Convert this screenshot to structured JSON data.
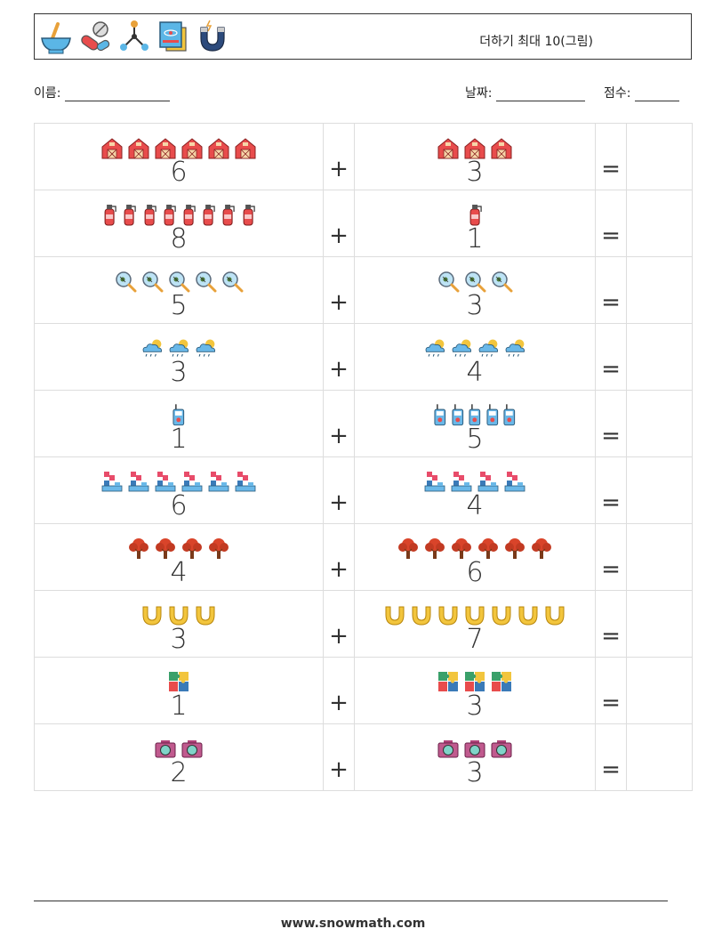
{
  "header": {
    "title": "더하기 최대 10(그림)",
    "icons": [
      "mortar-pestle-icon",
      "pills-icon",
      "molecule-icon",
      "science-book-icon",
      "magnet-icon"
    ]
  },
  "fields": {
    "name_label": "이름:",
    "date_label": "날짜:",
    "score_label": "점수:"
  },
  "rows": [
    {
      "a": 6,
      "b": 3,
      "icon": "barn"
    },
    {
      "a": 8,
      "b": 1,
      "icon": "fire-extinguisher"
    },
    {
      "a": 5,
      "b": 3,
      "icon": "magnifier-bug"
    },
    {
      "a": 3,
      "b": 4,
      "icon": "rain-cloud"
    },
    {
      "a": 1,
      "b": 5,
      "icon": "walkie-talkie"
    },
    {
      "a": 6,
      "b": 4,
      "icon": "tetris-blocks"
    },
    {
      "a": 4,
      "b": 6,
      "icon": "tree"
    },
    {
      "a": 3,
      "b": 7,
      "icon": "horseshoe"
    },
    {
      "a": 1,
      "b": 3,
      "icon": "puzzle"
    },
    {
      "a": 2,
      "b": 3,
      "icon": "camera"
    }
  ],
  "plus": "+",
  "equals": "=",
  "footer": "www.snowmath.com"
}
